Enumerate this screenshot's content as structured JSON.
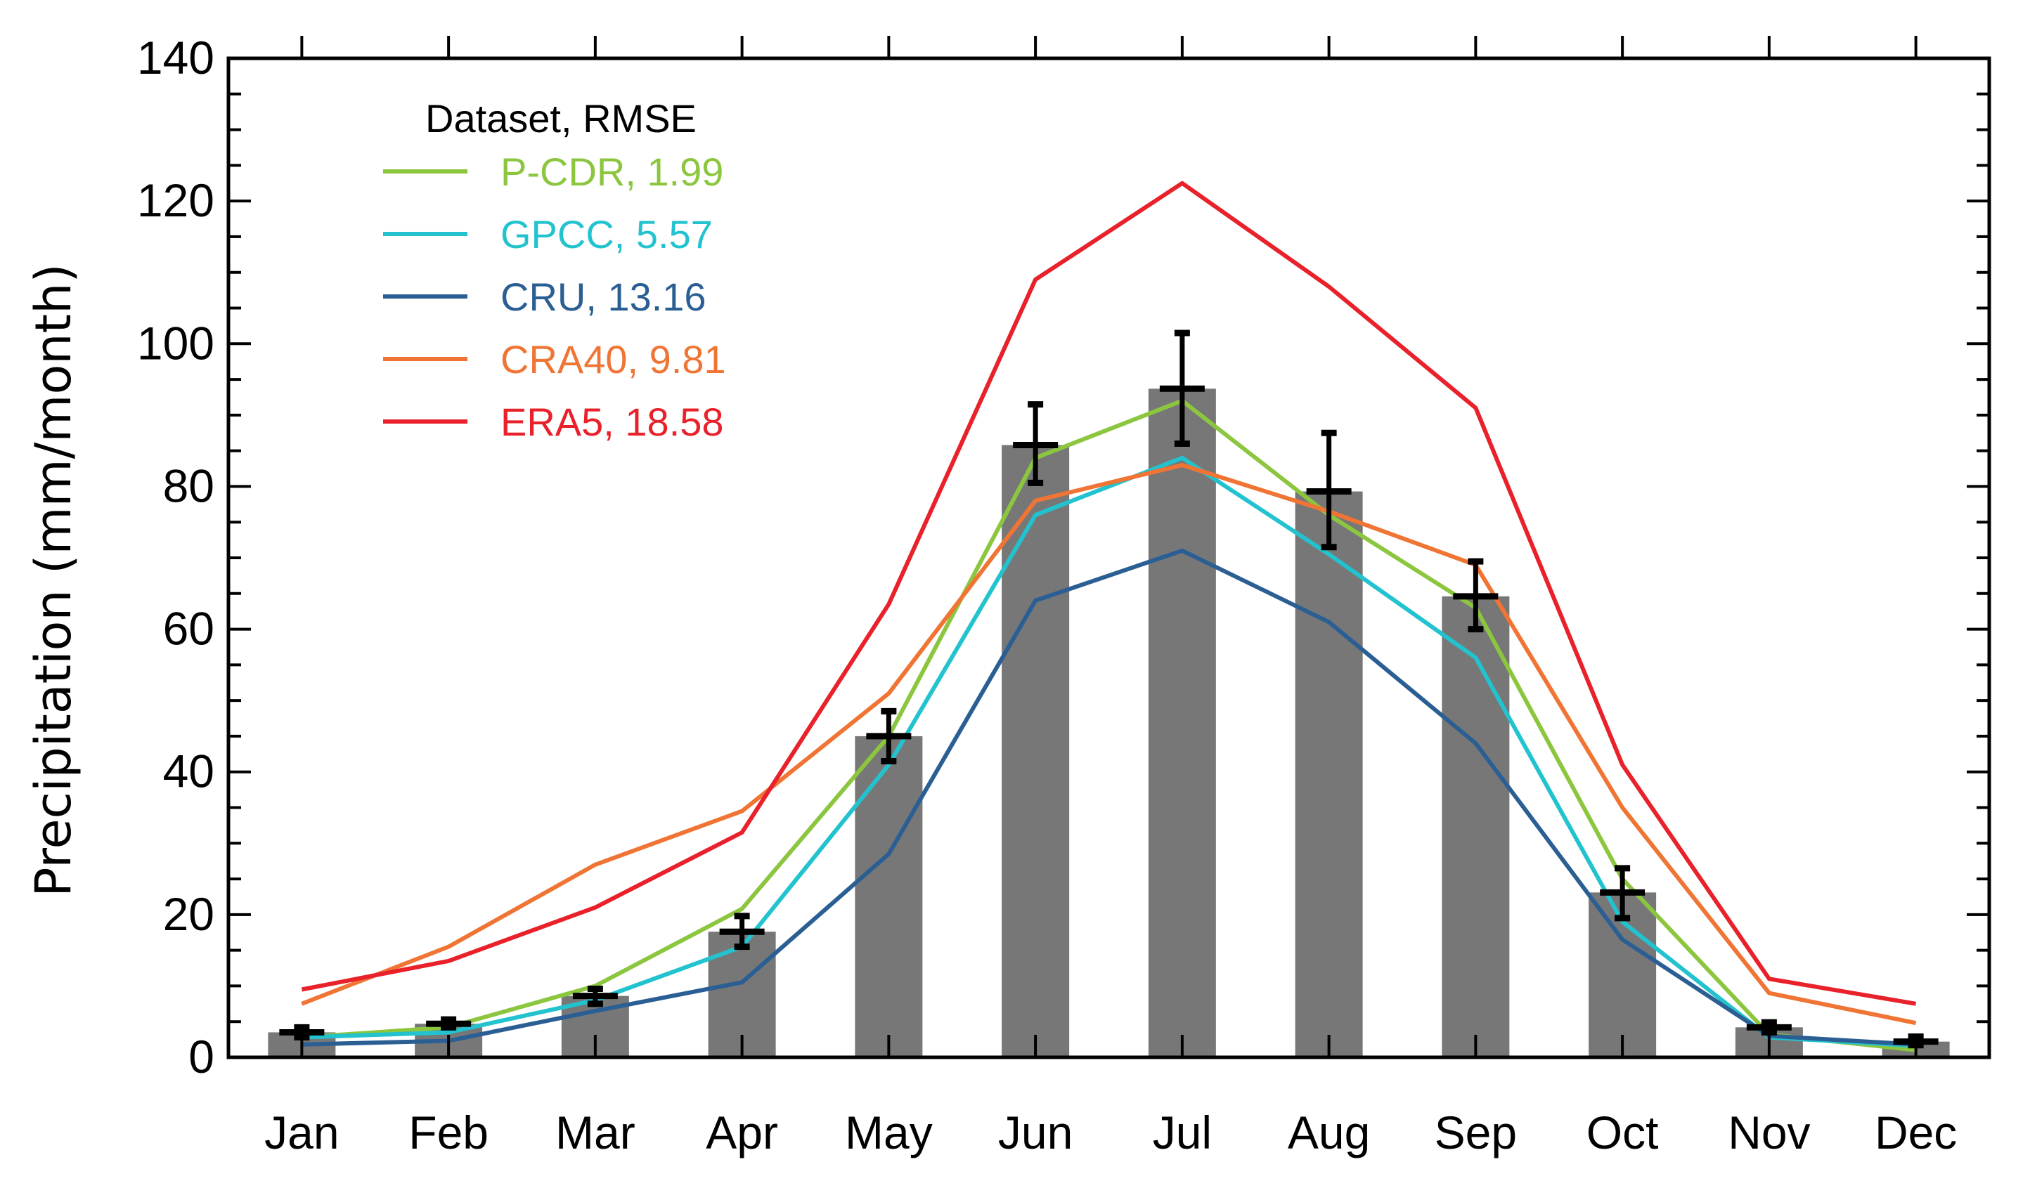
{
  "chart_data": {
    "type": "bar",
    "title": "",
    "xlabel": "",
    "ylabel": "Precipitation (mm/month)",
    "ylim": [
      0,
      140
    ],
    "yticks": [
      0,
      20,
      40,
      60,
      80,
      100,
      120,
      140
    ],
    "categories": [
      "Jan",
      "Feb",
      "Mar",
      "Apr",
      "May",
      "Jun",
      "Jul",
      "Aug",
      "Sep",
      "Oct",
      "Nov",
      "Dec"
    ],
    "bars": {
      "color": "#777777",
      "values": [
        3.5,
        4.7,
        8.6,
        17.6,
        45.0,
        85.8,
        93.7,
        79.3,
        64.6,
        23.1,
        4.2,
        2.2
      ],
      "error_low": [
        2.8,
        4.2,
        7.5,
        15.5,
        41.5,
        80.5,
        86.0,
        71.5,
        60.0,
        19.5,
        3.5,
        1.7
      ],
      "error_high": [
        4.2,
        5.3,
        9.6,
        19.8,
        48.5,
        91.5,
        101.5,
        87.5,
        69.5,
        26.5,
        4.9,
        2.9
      ]
    },
    "legend": {
      "title": "Dataset, RMSE",
      "position": "top-left"
    },
    "series": [
      {
        "name": "P-CDR, 1.99",
        "color": "#8cc63f",
        "values": [
          2.8,
          4.2,
          10.0,
          20.8,
          45.0,
          84.0,
          92.0,
          76.0,
          63.0,
          25.0,
          3.2,
          1.0
        ]
      },
      {
        "name": "GPCC, 5.57",
        "color": "#22c3cf",
        "values": [
          2.8,
          3.5,
          8.0,
          15.5,
          41.0,
          76.0,
          84.0,
          70.5,
          56.0,
          19.0,
          2.8,
          1.6
        ]
      },
      {
        "name": "CRU, 13.16",
        "color": "#2b5f94",
        "values": [
          1.8,
          2.3,
          6.5,
          10.5,
          28.5,
          64.0,
          71.0,
          61.0,
          44.0,
          16.5,
          3.0,
          1.8
        ]
      },
      {
        "name": "CRA40, 9.81",
        "color": "#f07535",
        "values": [
          7.5,
          15.5,
          27.0,
          34.5,
          51.0,
          78.0,
          83.0,
          76.5,
          69.0,
          35.0,
          9.0,
          4.8
        ]
      },
      {
        "name": "ERA5, 18.58",
        "color": "#e8212b",
        "values": [
          9.5,
          13.5,
          21.0,
          31.5,
          63.5,
          109.0,
          122.5,
          108.0,
          91.0,
          41.0,
          11.0,
          7.5
        ]
      }
    ],
    "grid": false
  }
}
